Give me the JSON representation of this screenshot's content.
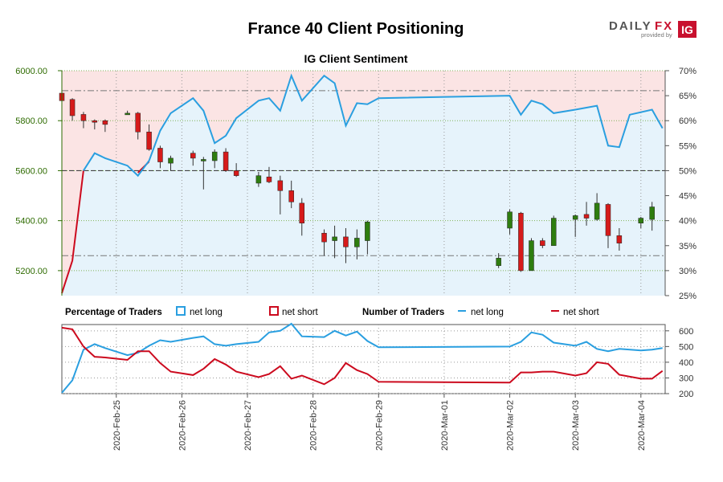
{
  "header": {
    "title": "France 40 Client Positioning",
    "brand_daily": "DAILY",
    "brand_fx": "FX",
    "brand_provided": "provided by",
    "brand_ig": "IG"
  },
  "colors": {
    "net_long": "#2a9fe0",
    "net_short": "#cc0a1e",
    "candle_up": "#2e7d0f",
    "candle_down": "#d61a1a",
    "long_fill": "#e6f3fb",
    "short_fill": "#fbe4e4",
    "price_axis": "#2e6b00"
  },
  "chart_data": [
    {
      "type": "candlestick+line",
      "title": "IG Client Sentiment",
      "price_axis": {
        "ticks": [
          "6000.00",
          "5800.00",
          "5600.00",
          "5400.00",
          "5200.00"
        ],
        "tick_values": [
          6000,
          5800,
          5600,
          5400,
          5200
        ],
        "range": [
          5100,
          6000
        ]
      },
      "pct_axis": {
        "ticks": [
          "70%",
          "65%",
          "60%",
          "55%",
          "50%",
          "45%",
          "40%",
          "35%",
          "30%",
          "25%"
        ],
        "tick_values": [
          70,
          65,
          60,
          55,
          50,
          45,
          40,
          35,
          30,
          25
        ],
        "range": [
          25,
          70
        ]
      },
      "x_axis": {
        "ticks": [
          "2020-Feb-25",
          "2020-Feb-26",
          "2020-Feb-27",
          "2020-Feb-28",
          "2020-Feb-29",
          "2020-Mar-01",
          "2020-Mar-02",
          "2020-Mar-03",
          "2020-Mar-04"
        ],
        "tick_positions": [
          0.83,
          1.83,
          2.83,
          3.83,
          4.83,
          5.83,
          6.83,
          7.83,
          8.83
        ],
        "range": [
          0,
          9.2
        ]
      },
      "reference_lines": {
        "high_pct": 66,
        "mid_pct": 50,
        "low_pct": 33
      },
      "candles": [
        {
          "t": 0.0,
          "o": 5910,
          "h": 5925,
          "l": 5880,
          "c": 5880
        },
        {
          "t": 0.16,
          "o": 5885,
          "h": 5890,
          "l": 5800,
          "c": 5820
        },
        {
          "t": 0.33,
          "o": 5825,
          "h": 5835,
          "l": 5770,
          "c": 5800
        },
        {
          "t": 0.5,
          "o": 5800,
          "h": 5805,
          "l": 5765,
          "c": 5795
        },
        {
          "t": 0.66,
          "o": 5800,
          "h": 5805,
          "l": 5755,
          "c": 5785
        },
        {
          "t": 1.0,
          "o": 5830,
          "h": 5840,
          "l": 5825,
          "c": 5830
        },
        {
          "t": 1.16,
          "o": 5830,
          "h": 5835,
          "l": 5725,
          "c": 5755
        },
        {
          "t": 1.33,
          "o": 5755,
          "h": 5785,
          "l": 5680,
          "c": 5685
        },
        {
          "t": 1.5,
          "o": 5690,
          "h": 5700,
          "l": 5610,
          "c": 5635
        },
        {
          "t": 1.66,
          "o": 5630,
          "h": 5660,
          "l": 5600,
          "c": 5650
        },
        {
          "t": 2.0,
          "o": 5670,
          "h": 5680,
          "l": 5620,
          "c": 5650
        },
        {
          "t": 2.16,
          "o": 5645,
          "h": 5655,
          "l": 5525,
          "c": 5645
        },
        {
          "t": 2.33,
          "o": 5640,
          "h": 5685,
          "l": 5610,
          "c": 5675
        },
        {
          "t": 2.5,
          "o": 5675,
          "h": 5690,
          "l": 5595,
          "c": 5600
        },
        {
          "t": 2.66,
          "o": 5600,
          "h": 5630,
          "l": 5575,
          "c": 5580
        },
        {
          "t": 3.0,
          "o": 5550,
          "h": 5595,
          "l": 5535,
          "c": 5580
        },
        {
          "t": 3.16,
          "o": 5575,
          "h": 5615,
          "l": 5550,
          "c": 5555
        },
        {
          "t": 3.33,
          "o": 5560,
          "h": 5580,
          "l": 5425,
          "c": 5520
        },
        {
          "t": 3.5,
          "o": 5520,
          "h": 5560,
          "l": 5450,
          "c": 5475
        },
        {
          "t": 3.66,
          "o": 5470,
          "h": 5490,
          "l": 5340,
          "c": 5390
        },
        {
          "t": 4.0,
          "o": 5350,
          "h": 5365,
          "l": 5260,
          "c": 5315
        },
        {
          "t": 4.16,
          "o": 5320,
          "h": 5380,
          "l": 5250,
          "c": 5335
        },
        {
          "t": 4.33,
          "o": 5335,
          "h": 5370,
          "l": 5230,
          "c": 5295
        },
        {
          "t": 4.5,
          "o": 5295,
          "h": 5365,
          "l": 5245,
          "c": 5330
        },
        {
          "t": 4.66,
          "o": 5320,
          "h": 5400,
          "l": 5265,
          "c": 5395
        },
        {
          "t": 6.66,
          "o": 5220,
          "h": 5270,
          "l": 5210,
          "c": 5250
        },
        {
          "t": 6.83,
          "o": 5370,
          "h": 5445,
          "l": 5345,
          "c": 5435
        },
        {
          "t": 7.0,
          "o": 5430,
          "h": 5435,
          "l": 5195,
          "c": 5200
        },
        {
          "t": 7.16,
          "o": 5200,
          "h": 5330,
          "l": 5200,
          "c": 5320
        },
        {
          "t": 7.33,
          "o": 5320,
          "h": 5330,
          "l": 5290,
          "c": 5300
        },
        {
          "t": 7.5,
          "o": 5300,
          "h": 5420,
          "l": 5300,
          "c": 5410
        },
        {
          "t": 7.83,
          "o": 5405,
          "h": 5425,
          "l": 5335,
          "c": 5420
        },
        {
          "t": 8.0,
          "o": 5425,
          "h": 5475,
          "l": 5380,
          "c": 5410
        },
        {
          "t": 8.16,
          "o": 5405,
          "h": 5510,
          "l": 5400,
          "c": 5470
        },
        {
          "t": 8.33,
          "o": 5465,
          "h": 5470,
          "l": 5290,
          "c": 5340
        },
        {
          "t": 8.5,
          "o": 5340,
          "h": 5370,
          "l": 5280,
          "c": 5310
        },
        {
          "t": 8.83,
          "o": 5390,
          "h": 5415,
          "l": 5370,
          "c": 5410
        },
        {
          "t": 9.0,
          "o": 5405,
          "h": 5475,
          "l": 5360,
          "c": 5455
        }
      ],
      "net_long_pct": [
        {
          "t": 0.0,
          "v": 25.5
        },
        {
          "t": 0.16,
          "v": 32
        },
        {
          "t": 0.33,
          "v": 50
        },
        {
          "t": 0.5,
          "v": 53.5
        },
        {
          "t": 0.66,
          "v": 52.5
        },
        {
          "t": 1.0,
          "v": 51
        },
        {
          "t": 1.16,
          "v": 49
        },
        {
          "t": 1.33,
          "v": 52
        },
        {
          "t": 1.5,
          "v": 58
        },
        {
          "t": 1.66,
          "v": 61.5
        },
        {
          "t": 2.0,
          "v": 64.5
        },
        {
          "t": 2.16,
          "v": 62
        },
        {
          "t": 2.33,
          "v": 55.5
        },
        {
          "t": 2.5,
          "v": 57
        },
        {
          "t": 2.66,
          "v": 60.5
        },
        {
          "t": 3.0,
          "v": 64
        },
        {
          "t": 3.16,
          "v": 64.5
        },
        {
          "t": 3.33,
          "v": 62
        },
        {
          "t": 3.5,
          "v": 69
        },
        {
          "t": 3.66,
          "v": 64
        },
        {
          "t": 4.0,
          "v": 69
        },
        {
          "t": 4.16,
          "v": 67.5
        },
        {
          "t": 4.33,
          "v": 59
        },
        {
          "t": 4.5,
          "v": 63.5
        },
        {
          "t": 4.66,
          "v": 63.3
        },
        {
          "t": 4.83,
          "v": 64.5
        },
        {
          "t": 6.83,
          "v": 65
        },
        {
          "t": 7.0,
          "v": 61.2
        },
        {
          "t": 7.16,
          "v": 64
        },
        {
          "t": 7.33,
          "v": 63.3
        },
        {
          "t": 7.5,
          "v": 61.5
        },
        {
          "t": 7.83,
          "v": 62.2
        },
        {
          "t": 8.16,
          "v": 63
        },
        {
          "t": 8.33,
          "v": 55
        },
        {
          "t": 8.5,
          "v": 54.7
        },
        {
          "t": 8.66,
          "v": 61.2
        },
        {
          "t": 9.0,
          "v": 62.2
        },
        {
          "t": 9.16,
          "v": 58.5
        }
      ],
      "net_short_pct_bridge": [
        {
          "t": 0.33,
          "v": 50
        },
        {
          "t": 0.5,
          "v": 54.7
        }
      ],
      "net_short_pct_dip": [
        {
          "t": 1.16,
          "v": 49.6
        },
        {
          "t": 1.33,
          "v": 51.8
        }
      ]
    },
    {
      "type": "line",
      "title": "Number of Traders",
      "legend": {
        "pct_label": "Percentage of Traders",
        "net_long": "net long",
        "net_short": "net short",
        "count_label": "Number of Traders"
      },
      "count_axis": {
        "ticks": [
          "600",
          "500",
          "400",
          "300",
          "200"
        ],
        "tick_values": [
          600,
          500,
          400,
          300,
          200
        ],
        "range": [
          200,
          640
        ]
      },
      "series": [
        {
          "name": "net long",
          "points": [
            {
              "t": 0.0,
              "v": 205
            },
            {
              "t": 0.16,
              "v": 285
            },
            {
              "t": 0.33,
              "v": 480
            },
            {
              "t": 0.5,
              "v": 515
            },
            {
              "t": 0.66,
              "v": 490
            },
            {
              "t": 1.0,
              "v": 445
            },
            {
              "t": 1.16,
              "v": 460
            },
            {
              "t": 1.33,
              "v": 505
            },
            {
              "t": 1.5,
              "v": 540
            },
            {
              "t": 1.66,
              "v": 530
            },
            {
              "t": 2.0,
              "v": 555
            },
            {
              "t": 2.16,
              "v": 565
            },
            {
              "t": 2.33,
              "v": 515
            },
            {
              "t": 2.5,
              "v": 505
            },
            {
              "t": 2.66,
              "v": 515
            },
            {
              "t": 3.0,
              "v": 530
            },
            {
              "t": 3.16,
              "v": 590
            },
            {
              "t": 3.33,
              "v": 600
            },
            {
              "t": 3.5,
              "v": 645
            },
            {
              "t": 3.66,
              "v": 565
            },
            {
              "t": 4.0,
              "v": 560
            },
            {
              "t": 4.16,
              "v": 600
            },
            {
              "t": 4.33,
              "v": 570
            },
            {
              "t": 4.5,
              "v": 595
            },
            {
              "t": 4.66,
              "v": 535
            },
            {
              "t": 4.83,
              "v": 495
            },
            {
              "t": 6.83,
              "v": 500
            },
            {
              "t": 7.0,
              "v": 530
            },
            {
              "t": 7.16,
              "v": 590
            },
            {
              "t": 7.33,
              "v": 575
            },
            {
              "t": 7.5,
              "v": 525
            },
            {
              "t": 7.83,
              "v": 505
            },
            {
              "t": 8.0,
              "v": 530
            },
            {
              "t": 8.16,
              "v": 485
            },
            {
              "t": 8.33,
              "v": 470
            },
            {
              "t": 8.5,
              "v": 485
            },
            {
              "t": 8.83,
              "v": 475
            },
            {
              "t": 9.0,
              "v": 480
            },
            {
              "t": 9.16,
              "v": 490
            }
          ]
        },
        {
          "name": "net short",
          "points": [
            {
              "t": 0.0,
              "v": 620
            },
            {
              "t": 0.16,
              "v": 610
            },
            {
              "t": 0.33,
              "v": 500
            },
            {
              "t": 0.5,
              "v": 435
            },
            {
              "t": 0.66,
              "v": 430
            },
            {
              "t": 1.0,
              "v": 415
            },
            {
              "t": 1.16,
              "v": 470
            },
            {
              "t": 1.33,
              "v": 470
            },
            {
              "t": 1.5,
              "v": 395
            },
            {
              "t": 1.66,
              "v": 340
            },
            {
              "t": 2.0,
              "v": 318
            },
            {
              "t": 2.16,
              "v": 358
            },
            {
              "t": 2.33,
              "v": 420
            },
            {
              "t": 2.5,
              "v": 385
            },
            {
              "t": 2.66,
              "v": 340
            },
            {
              "t": 3.0,
              "v": 305
            },
            {
              "t": 3.16,
              "v": 325
            },
            {
              "t": 3.33,
              "v": 375
            },
            {
              "t": 3.5,
              "v": 295
            },
            {
              "t": 3.66,
              "v": 315
            },
            {
              "t": 4.0,
              "v": 260
            },
            {
              "t": 4.16,
              "v": 300
            },
            {
              "t": 4.33,
              "v": 395
            },
            {
              "t": 4.5,
              "v": 350
            },
            {
              "t": 4.66,
              "v": 325
            },
            {
              "t": 4.83,
              "v": 275
            },
            {
              "t": 6.83,
              "v": 270
            },
            {
              "t": 7.0,
              "v": 335
            },
            {
              "t": 7.16,
              "v": 335
            },
            {
              "t": 7.33,
              "v": 340
            },
            {
              "t": 7.5,
              "v": 340
            },
            {
              "t": 7.83,
              "v": 315
            },
            {
              "t": 8.0,
              "v": 330
            },
            {
              "t": 8.16,
              "v": 400
            },
            {
              "t": 8.33,
              "v": 390
            },
            {
              "t": 8.5,
              "v": 320
            },
            {
              "t": 8.83,
              "v": 295
            },
            {
              "t": 9.0,
              "v": 295
            },
            {
              "t": 9.16,
              "v": 345
            }
          ]
        }
      ]
    }
  ]
}
